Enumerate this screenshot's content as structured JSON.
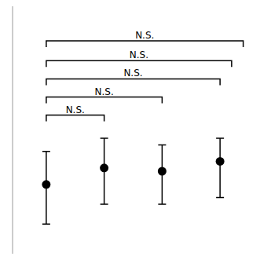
{
  "chart_data": {
    "type": "dot",
    "categories": [
      null,
      null,
      null,
      null
    ],
    "values": [
      0.3,
      0.4,
      0.38,
      0.44
    ],
    "error_upper": [
      0.2,
      0.18,
      0.16,
      0.14
    ],
    "error_lower": [
      0.24,
      0.22,
      0.2,
      0.22
    ],
    "color": "#000000",
    "ylim": [
      -0.12,
      1.38
    ],
    "tick_labels": false,
    "annotations": [
      {
        "text": "N.S.",
        "y": 0.72
      },
      {
        "text": "N.S.",
        "y": 0.83
      },
      {
        "text": "N.S.",
        "y": 0.94
      },
      {
        "text": "N.S.",
        "y": 1.05
      },
      {
        "text": "N.S.",
        "y": 1.17
      }
    ]
  }
}
